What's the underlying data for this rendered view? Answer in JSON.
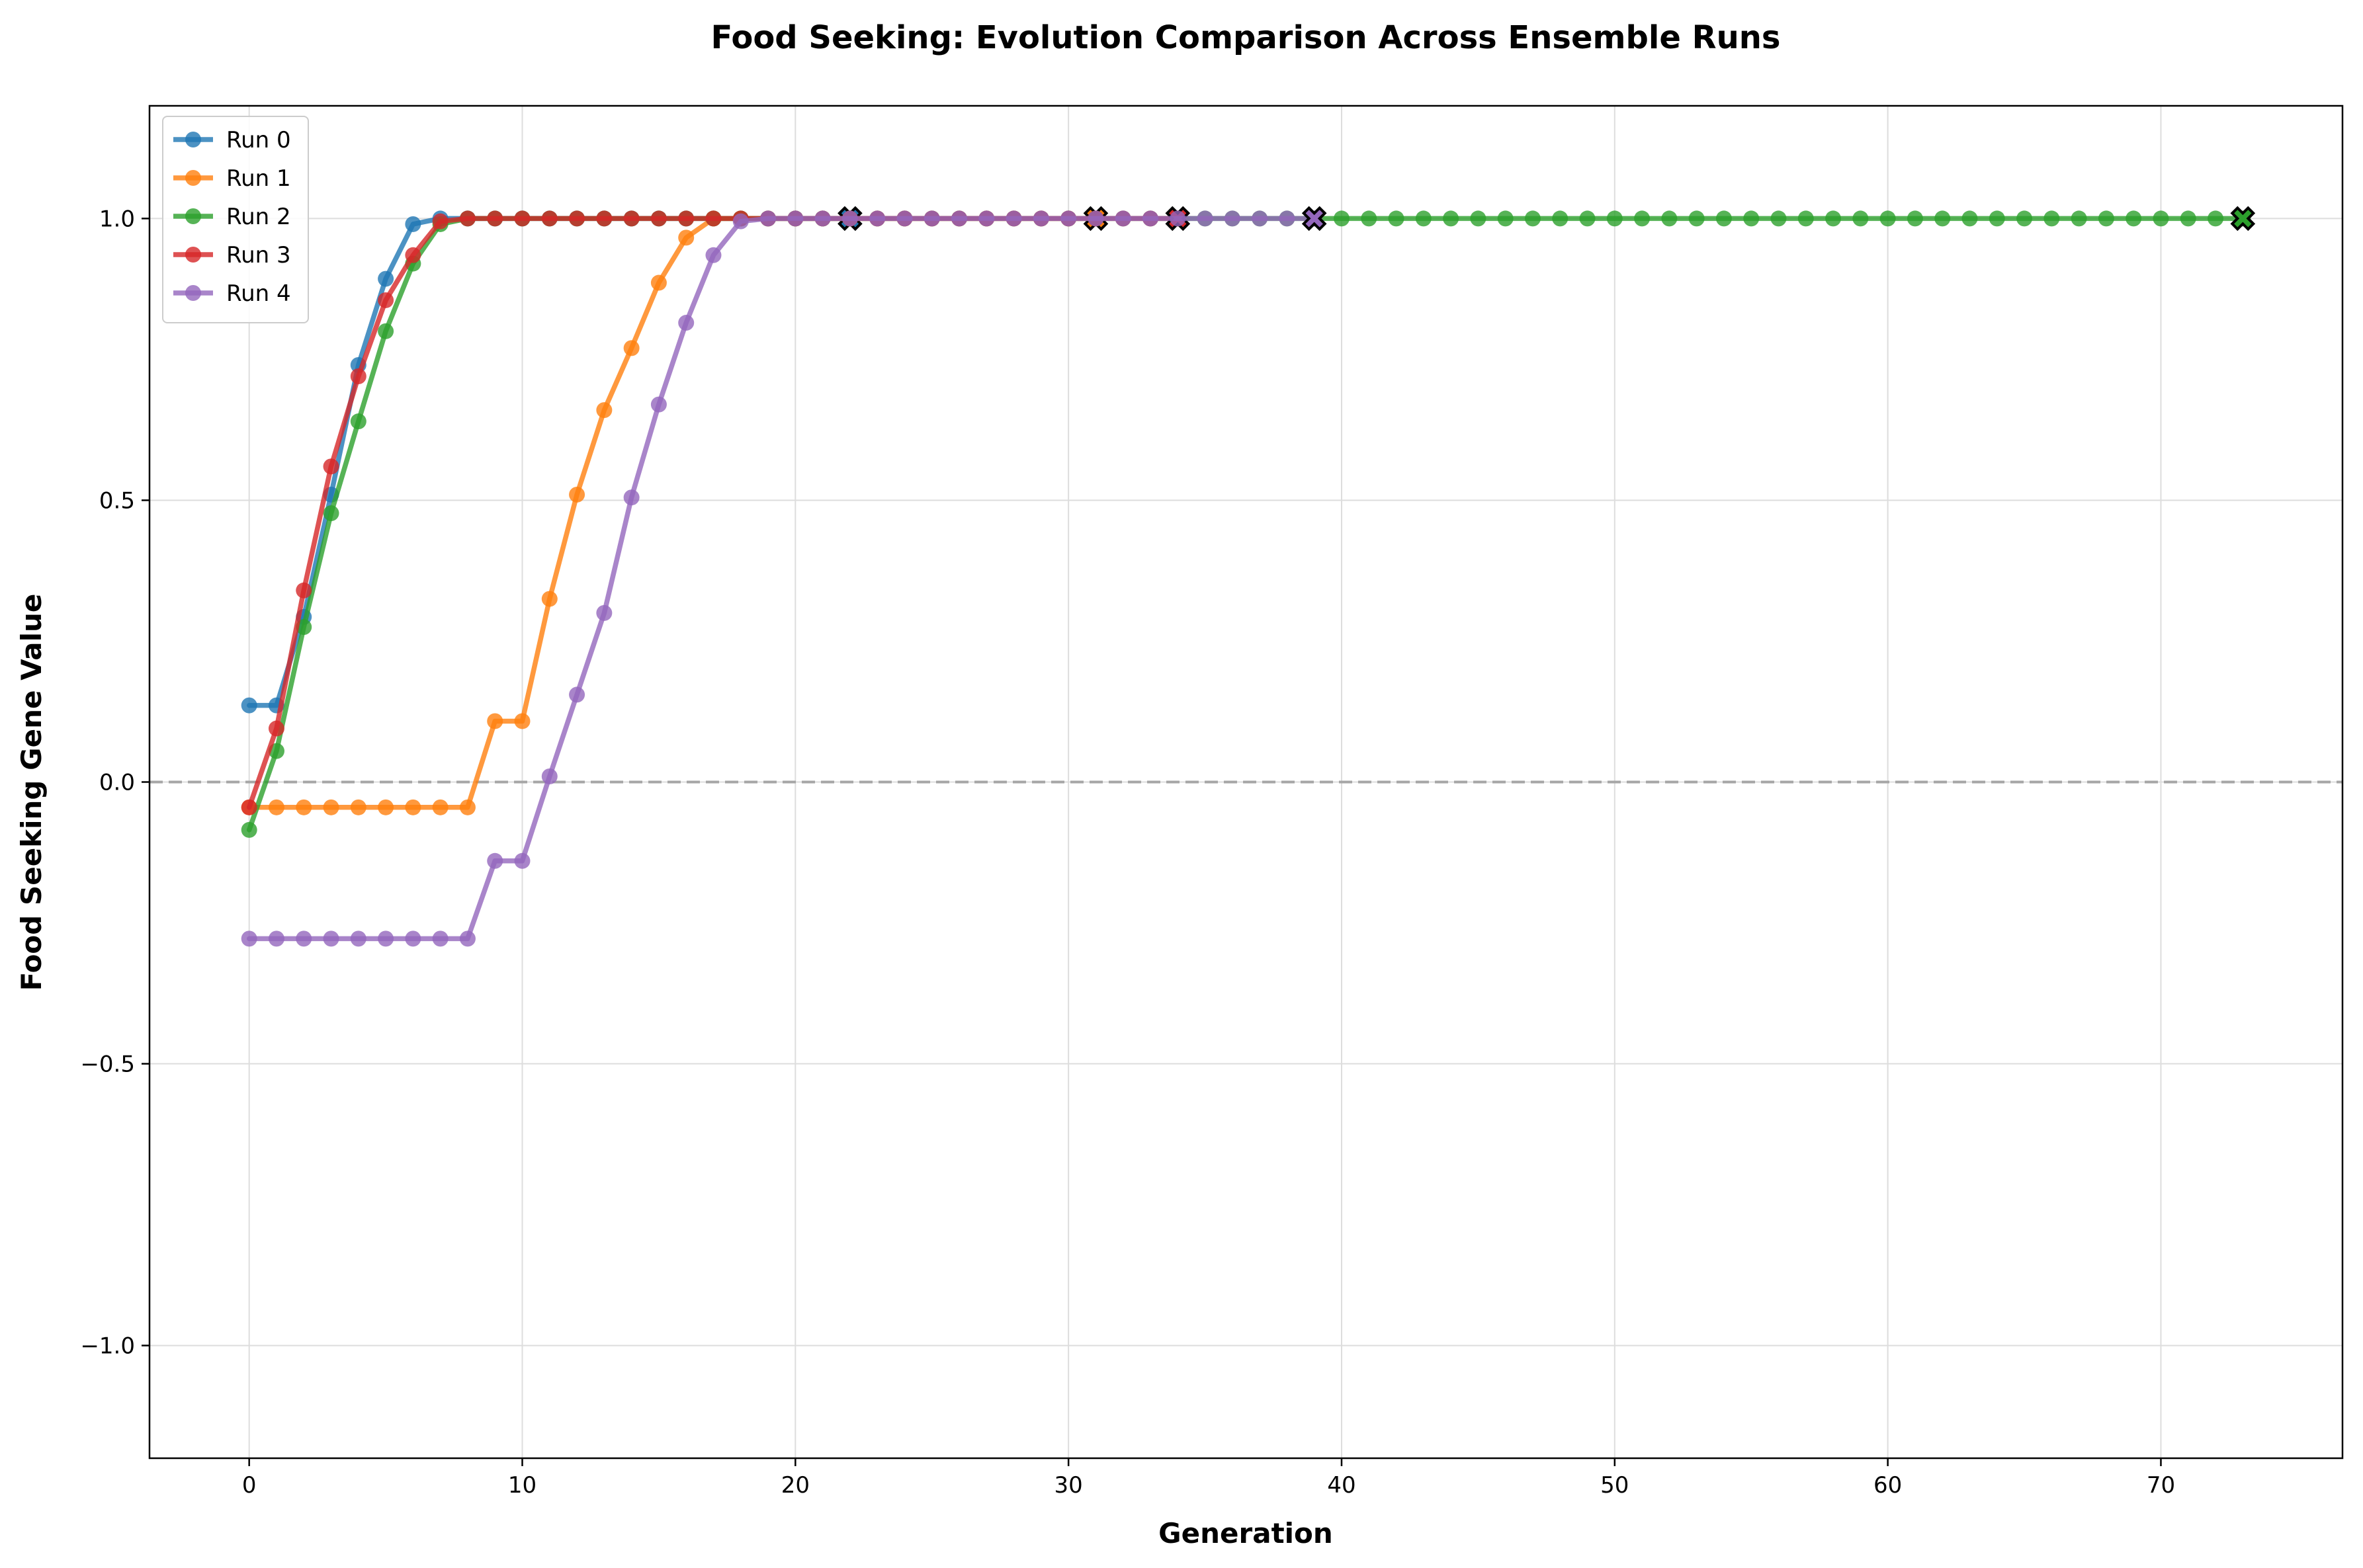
{
  "chart_data": {
    "type": "line",
    "title": "Food Seeking: Evolution Comparison Across Ensemble Runs",
    "xlabel": "Generation",
    "ylabel": "Food Seeking Gene Value",
    "xlim": [
      -3.65,
      76.65
    ],
    "ylim": [
      -1.2,
      1.2
    ],
    "xticks": [
      0,
      10,
      20,
      30,
      40,
      50,
      60,
      70
    ],
    "yticks": [
      -1.0,
      -0.5,
      0.0,
      0.5,
      1.0
    ],
    "ytick_labels": [
      "−1.0",
      "−0.5",
      "0.0",
      "0.5",
      "1.0"
    ],
    "grid": true,
    "reference_line": {
      "y": 0.0,
      "style": "dashed",
      "color": "#a6a6a6"
    },
    "legend_position": "top-left",
    "series": [
      {
        "name": "Run 0",
        "color": "#1f77b4",
        "end_marker": "X",
        "values": [
          0.136,
          0.136,
          0.293,
          0.51,
          0.74,
          0.893,
          0.99,
          1.0,
          1.0,
          1.0,
          1.0,
          1.0,
          1.0,
          1.0,
          1.0,
          1.0,
          1.0,
          1.0,
          1.0,
          1.0,
          1.0,
          1.0,
          1.0
        ]
      },
      {
        "name": "Run 1",
        "color": "#ff7f0e",
        "end_marker": "X",
        "values": [
          -0.045,
          -0.045,
          -0.045,
          -0.045,
          -0.045,
          -0.045,
          -0.045,
          -0.045,
          -0.045,
          0.108,
          0.108,
          0.325,
          0.51,
          0.66,
          0.77,
          0.886,
          0.966,
          1.0,
          1.0,
          1.0,
          1.0,
          1.0,
          1.0,
          1.0,
          1.0,
          1.0,
          1.0,
          1.0,
          1.0,
          1.0,
          1.0,
          1.0
        ]
      },
      {
        "name": "Run 2",
        "color": "#2ca02c",
        "end_marker": "X",
        "values": [
          -0.085,
          0.055,
          0.275,
          0.477,
          0.64,
          0.8,
          0.92,
          0.99,
          1.0,
          1.0,
          1.0,
          1.0,
          1.0,
          1.0,
          1.0,
          1.0,
          1.0,
          1.0,
          1.0,
          1.0,
          1.0,
          1.0,
          1.0,
          1.0,
          1.0,
          1.0,
          1.0,
          1.0,
          1.0,
          1.0,
          1.0,
          1.0,
          1.0,
          1.0,
          1.0,
          1.0,
          1.0,
          1.0,
          1.0,
          1.0,
          1.0,
          1.0,
          1.0,
          1.0,
          1.0,
          1.0,
          1.0,
          1.0,
          1.0,
          1.0,
          1.0,
          1.0,
          1.0,
          1.0,
          1.0,
          1.0,
          1.0,
          1.0,
          1.0,
          1.0,
          1.0,
          1.0,
          1.0,
          1.0,
          1.0,
          1.0,
          1.0,
          1.0,
          1.0,
          1.0,
          1.0,
          1.0,
          1.0,
          1.0
        ]
      },
      {
        "name": "Run 3",
        "color": "#d62728",
        "end_marker": "X",
        "values": [
          -0.045,
          0.095,
          0.34,
          0.56,
          0.72,
          0.855,
          0.935,
          0.995,
          1.0,
          1.0,
          1.0,
          1.0,
          1.0,
          1.0,
          1.0,
          1.0,
          1.0,
          1.0,
          1.0,
          1.0,
          1.0,
          1.0,
          1.0,
          1.0,
          1.0,
          1.0,
          1.0,
          1.0,
          1.0,
          1.0,
          1.0,
          1.0,
          1.0,
          1.0,
          1.0
        ]
      },
      {
        "name": "Run 4",
        "color": "#9467bd",
        "end_marker": "X",
        "values": [
          -0.278,
          -0.278,
          -0.278,
          -0.278,
          -0.278,
          -0.278,
          -0.278,
          -0.278,
          -0.278,
          -0.14,
          -0.14,
          0.01,
          0.155,
          0.3,
          0.505,
          0.67,
          0.815,
          0.935,
          0.995,
          1.0,
          1.0,
          1.0,
          1.0,
          1.0,
          1.0,
          1.0,
          1.0,
          1.0,
          1.0,
          1.0,
          1.0,
          1.0,
          1.0,
          1.0,
          1.0,
          1.0,
          1.0,
          1.0,
          1.0,
          1.0
        ]
      }
    ]
  }
}
